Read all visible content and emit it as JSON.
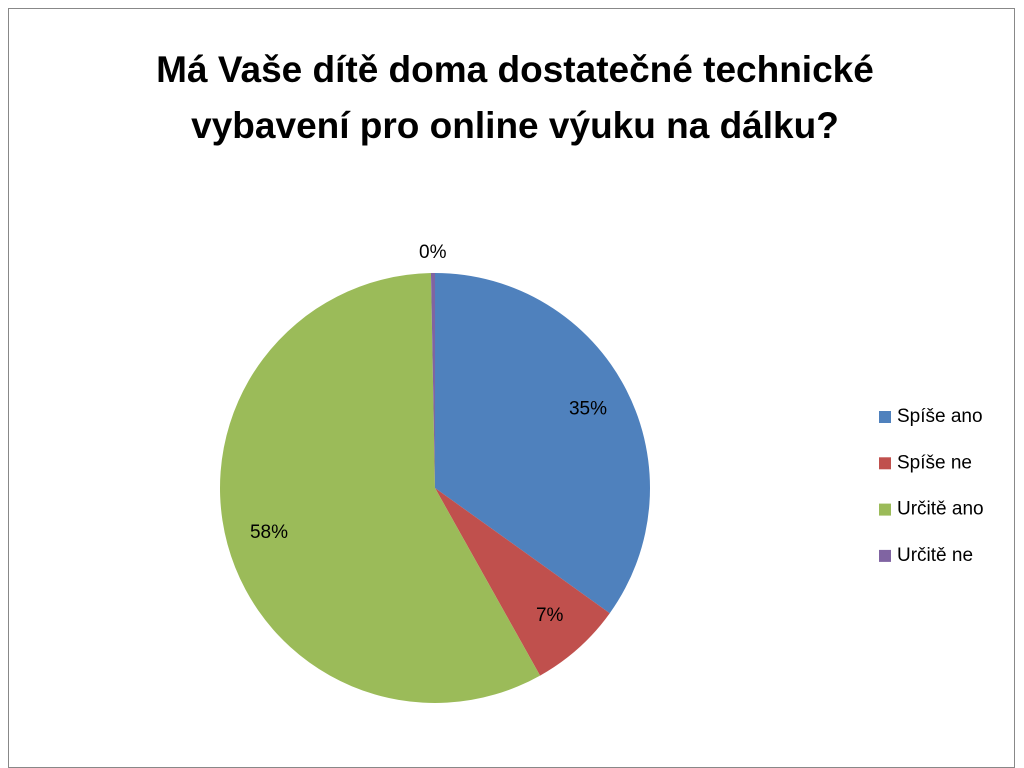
{
  "chart_data": {
    "type": "pie",
    "title": "Má Vaše dítě doma dostatečné technické vybavení pro online výuku na dálku?",
    "categories": [
      "Spíše ano",
      "Spíše ne",
      "Určitě ano",
      "Určitě ne"
    ],
    "values": [
      35,
      7,
      58,
      0.3
    ],
    "value_labels": [
      "35%",
      "7%",
      "58%",
      "0%"
    ],
    "colors": [
      "#4f81bd",
      "#c0504d",
      "#9bbb59",
      "#8064a2"
    ],
    "legend": "right"
  }
}
